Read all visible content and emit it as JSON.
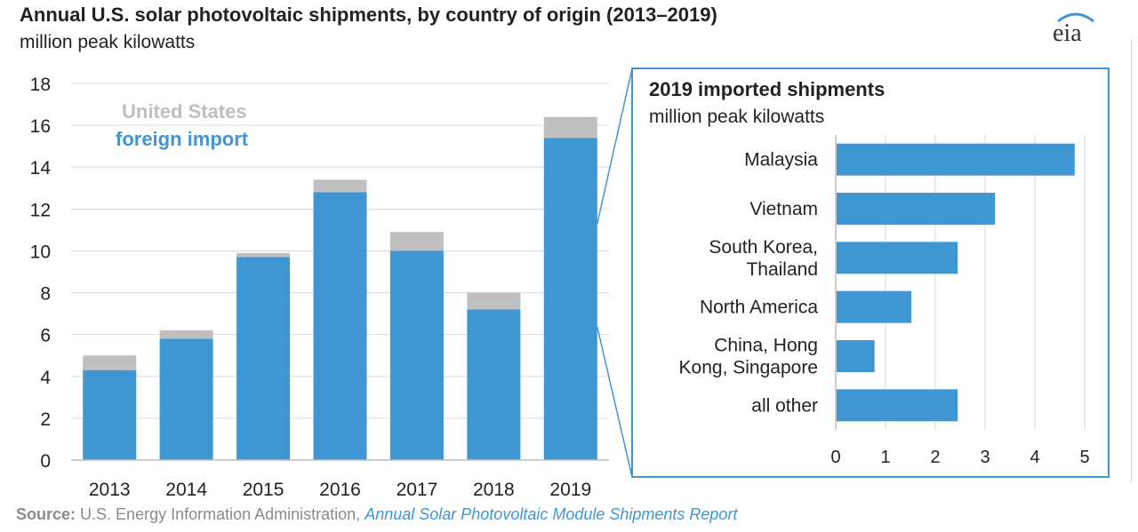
{
  "header": {
    "title": "Annual U.S. solar photovoltaic shipments, by country of origin (2013–2019)",
    "subtitle": "million peak kilowatts",
    "logo_text": "eia"
  },
  "source": {
    "label": "Source:",
    "agency": "U.S. Energy Information Administration,",
    "report": "Annual Solar Photovoltaic Module Shipments Report"
  },
  "colors": {
    "foreign": "#3f96d3",
    "us": "#bfbfbf",
    "grid": "#d9d9d9",
    "axis": "#222222",
    "inset_border": "#3f96d3"
  },
  "chart_data": [
    {
      "type": "bar",
      "stacked": true,
      "categories": [
        "2013",
        "2014",
        "2015",
        "2016",
        "2017",
        "2018",
        "2019"
      ],
      "series": [
        {
          "name": "foreign import",
          "values": [
            4.3,
            5.8,
            9.7,
            12.8,
            10.0,
            7.2,
            15.4
          ]
        },
        {
          "name": "United States",
          "values": [
            0.7,
            0.4,
            0.2,
            0.6,
            0.9,
            0.8,
            1.0
          ]
        }
      ],
      "ylim": [
        0,
        18
      ],
      "yticks": [
        0,
        2,
        4,
        6,
        8,
        10,
        12,
        14,
        16,
        18
      ],
      "legend_placement": "top-left inside plot",
      "grid": true
    },
    {
      "type": "bar",
      "orientation": "horizontal",
      "title": "2019 imported shipments",
      "subtitle": "million peak kilowatts",
      "categories": [
        [
          "Malaysia"
        ],
        [
          "Vietnam"
        ],
        [
          "South Korea,",
          "Thailand"
        ],
        [
          "North America"
        ],
        [
          "China, Hong",
          "Kong, Singapore"
        ],
        [
          "all other"
        ]
      ],
      "values": [
        4.8,
        3.2,
        2.45,
        1.52,
        0.78,
        2.45
      ],
      "xlim": [
        0,
        5
      ],
      "xticks": [
        0,
        1,
        2,
        3,
        4,
        5
      ],
      "grid": true
    }
  ]
}
